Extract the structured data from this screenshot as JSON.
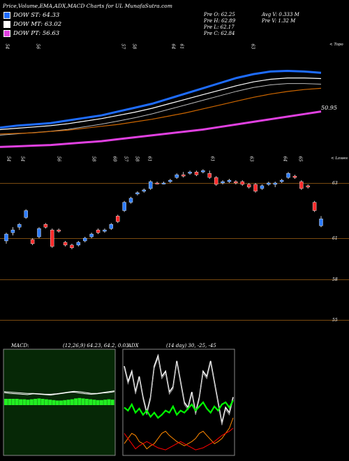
{
  "header": {
    "title": "Price,Volume,EMA,ADX,MACD Charts for UL  MunafaSutra.com",
    "legend": [
      {
        "label": "DOW ST: 64.33",
        "color": "#1e6cff"
      },
      {
        "label": "DOW MT: 63.02",
        "color": "#ffffff"
      },
      {
        "label": "DOW PT: 56.63",
        "color": "#e040e0"
      }
    ],
    "stats": {
      "open": "Pre   O: 62.25",
      "high": "Pre   H: 62.89",
      "low": "Pre   L: 62.17",
      "close": "Pre   C: 62.84",
      "avg_vol": "Avg V: 0.333  M",
      "pre_vol": "Pre   V: 1.32  M"
    }
  },
  "ema_panel": {
    "corner_label": "< Topo",
    "last_value": "50.95",
    "top_labels": [
      "54",
      "56",
      "57",
      "58",
      "64",
      "61",
      "63"
    ],
    "bottom_labels": [
      "54",
      "54",
      "56",
      "58",
      "60",
      "57",
      "58",
      "61",
      "61",
      "63",
      "64",
      "65"
    ]
  },
  "price_panel": {
    "corner_label": "< Lowes",
    "axis_labels": [
      "63",
      "61",
      "58",
      "55"
    ]
  },
  "macd_panel": {
    "label": "MACD:",
    "params": "(12,26,9) 64.23,  64.2,  0.03"
  },
  "adx_panel": {
    "label": "ADX",
    "params": "(14 day) 30,  -25,  -45"
  },
  "chart_data": [
    {
      "type": "line",
      "name": "EMA lines",
      "series": [
        {
          "color": "#1e6cff",
          "values": [
            0.05,
            0.08,
            0.1,
            0.12,
            0.16,
            0.2,
            0.24,
            0.3,
            0.36,
            0.42,
            0.5,
            0.58,
            0.66,
            0.74,
            0.82,
            0.88,
            0.92,
            0.93,
            0.92,
            0.9
          ]
        },
        {
          "color": "#ffffff",
          "values": [
            0.02,
            0.04,
            0.06,
            0.08,
            0.11,
            0.15,
            0.19,
            0.24,
            0.29,
            0.35,
            0.42,
            0.49,
            0.56,
            0.63,
            0.7,
            0.76,
            0.8,
            0.82,
            0.82,
            0.81
          ]
        },
        {
          "color": "#cc6600",
          "values": [
            -0.05,
            -0.04,
            -0.03,
            -0.01,
            0.01,
            0.04,
            0.07,
            0.1,
            0.14,
            0.18,
            0.23,
            0.28,
            0.34,
            0.4,
            0.46,
            0.52,
            0.57,
            0.61,
            0.64,
            0.66
          ]
        },
        {
          "color": "#e040e0",
          "values": [
            -0.25,
            -0.24,
            -0.23,
            -0.22,
            -0.2,
            -0.18,
            -0.16,
            -0.13,
            -0.1,
            -0.07,
            -0.04,
            -0.01,
            0.02,
            0.06,
            0.1,
            0.14,
            0.18,
            0.22,
            0.26,
            0.3
          ]
        }
      ]
    },
    {
      "type": "candlestick",
      "name": "Price",
      "candles": [
        {
          "o": 60.9,
          "c": 61.15,
          "h": 61.2,
          "l": 60.8,
          "up": true
        },
        {
          "o": 61.2,
          "c": 61.3,
          "h": 61.4,
          "l": 61.1,
          "up": true
        },
        {
          "o": 61.4,
          "c": 61.5,
          "h": 61.55,
          "l": 61.3,
          "up": true
        },
        {
          "o": 61.75,
          "c": 62.0,
          "h": 62.05,
          "l": 61.7,
          "up": true
        },
        {
          "o": 60.95,
          "c": 60.8,
          "h": 61.0,
          "l": 60.75,
          "up": false
        },
        {
          "o": 61.05,
          "c": 61.35,
          "h": 61.4,
          "l": 61.0,
          "up": true
        },
        {
          "o": 61.5,
          "c": 61.4,
          "h": 61.55,
          "l": 61.35,
          "up": false
        },
        {
          "o": 61.3,
          "c": 60.7,
          "h": 61.35,
          "l": 60.65,
          "up": false
        },
        {
          "o": 61.3,
          "c": 61.25,
          "h": 61.35,
          "l": 61.2,
          "up": false
        },
        {
          "o": 60.85,
          "c": 60.75,
          "h": 60.9,
          "l": 60.7,
          "up": false
        },
        {
          "o": 60.75,
          "c": 60.65,
          "h": 60.8,
          "l": 60.6,
          "up": false
        },
        {
          "o": 60.75,
          "c": 60.85,
          "h": 60.9,
          "l": 60.7,
          "up": true
        },
        {
          "o": 60.9,
          "c": 61.0,
          "h": 61.05,
          "l": 60.85,
          "up": true
        },
        {
          "o": 61.05,
          "c": 61.15,
          "h": 61.2,
          "l": 61.0,
          "up": true
        },
        {
          "o": 61.3,
          "c": 61.2,
          "h": 61.35,
          "l": 61.15,
          "up": false
        },
        {
          "o": 61.25,
          "c": 61.3,
          "h": 61.35,
          "l": 61.2,
          "up": true
        },
        {
          "o": 61.35,
          "c": 61.5,
          "h": 61.55,
          "l": 61.3,
          "up": true
        },
        {
          "o": 61.8,
          "c": 61.6,
          "h": 61.85,
          "l": 61.55,
          "up": false
        },
        {
          "o": 62.0,
          "c": 62.3,
          "h": 62.35,
          "l": 61.95,
          "up": true
        },
        {
          "o": 62.3,
          "c": 62.45,
          "h": 62.5,
          "l": 62.25,
          "up": true
        },
        {
          "o": 62.6,
          "c": 62.65,
          "h": 62.7,
          "l": 62.55,
          "up": true
        },
        {
          "o": 62.7,
          "c": 62.75,
          "h": 62.8,
          "l": 62.65,
          "up": true
        },
        {
          "o": 62.8,
          "c": 63.05,
          "h": 63.1,
          "l": 62.75,
          "up": true
        },
        {
          "o": 63.0,
          "c": 62.98,
          "h": 63.05,
          "l": 62.95,
          "up": false
        },
        {
          "o": 62.98,
          "c": 63.0,
          "h": 63.05,
          "l": 62.95,
          "up": true
        },
        {
          "o": 63.05,
          "c": 63.1,
          "h": 63.15,
          "l": 63.0,
          "up": true
        },
        {
          "o": 63.2,
          "c": 63.3,
          "h": 63.35,
          "l": 63.15,
          "up": true
        },
        {
          "o": 63.3,
          "c": 63.25,
          "h": 63.4,
          "l": 63.2,
          "up": false
        },
        {
          "o": 63.35,
          "c": 63.4,
          "h": 63.45,
          "l": 63.3,
          "up": true
        },
        {
          "o": 63.4,
          "c": 63.3,
          "h": 63.45,
          "l": 63.25,
          "up": false
        },
        {
          "o": 63.4,
          "c": 63.45,
          "h": 63.5,
          "l": 63.35,
          "up": true
        },
        {
          "o": 63.35,
          "c": 63.2,
          "h": 63.45,
          "l": 63.15,
          "up": false
        },
        {
          "o": 63.2,
          "c": 62.95,
          "h": 63.25,
          "l": 62.9,
          "up": false
        },
        {
          "o": 63.0,
          "c": 63.05,
          "h": 63.1,
          "l": 62.95,
          "up": true
        },
        {
          "o": 63.05,
          "c": 63.1,
          "h": 63.15,
          "l": 63.0,
          "up": true
        },
        {
          "o": 63.05,
          "c": 63.0,
          "h": 63.1,
          "l": 62.95,
          "up": false
        },
        {
          "o": 63.05,
          "c": 62.95,
          "h": 63.1,
          "l": 62.9,
          "up": false
        },
        {
          "o": 62.95,
          "c": 62.85,
          "h": 63.0,
          "l": 62.8,
          "up": false
        },
        {
          "o": 62.95,
          "c": 62.7,
          "h": 63.0,
          "l": 62.65,
          "up": false
        },
        {
          "o": 62.8,
          "c": 62.9,
          "h": 62.95,
          "l": 62.75,
          "up": true
        },
        {
          "o": 62.95,
          "c": 63.0,
          "h": 63.05,
          "l": 62.9,
          "up": true
        },
        {
          "o": 62.95,
          "c": 63.0,
          "h": 63.05,
          "l": 62.85,
          "up": true
        },
        {
          "o": 63.05,
          "c": 63.1,
          "h": 63.15,
          "l": 63.0,
          "up": true
        },
        {
          "o": 63.2,
          "c": 63.35,
          "h": 63.4,
          "l": 63.15,
          "up": true
        },
        {
          "o": 63.25,
          "c": 63.2,
          "h": 63.3,
          "l": 63.15,
          "up": false
        },
        {
          "o": 63.05,
          "c": 62.8,
          "h": 63.1,
          "l": 62.75,
          "up": false
        },
        {
          "o": 62.9,
          "c": 62.85,
          "h": 62.95,
          "l": 62.8,
          "up": false
        },
        {
          "o": 62.3,
          "c": 62.0,
          "h": 62.35,
          "l": 61.95,
          "up": false
        },
        {
          "o": 61.7,
          "c": 61.45,
          "h": 61.8,
          "l": 61.4,
          "up": true
        }
      ]
    },
    {
      "type": "line",
      "name": "MACD",
      "series": [
        {
          "color": "#ffffff",
          "values": [
            0.3,
            0.28,
            0.27,
            0.26,
            0.25,
            0.27,
            0.26,
            0.25,
            0.24,
            0.26,
            0.28,
            0.3,
            0.31,
            0.29,
            0.27,
            0.26,
            0.27,
            0.29,
            0.3,
            0.32
          ]
        },
        {
          "color": "#ffffff",
          "values": [
            0.32,
            0.31,
            0.3,
            0.29,
            0.28,
            0.28,
            0.27,
            0.26,
            0.26,
            0.27,
            0.29,
            0.31,
            0.33,
            0.32,
            0.3,
            0.28,
            0.28,
            0.3,
            0.32,
            0.34
          ]
        }
      ],
      "histogram": [
        0.15,
        0.15,
        0.15,
        0.15,
        0.14,
        0.14,
        0.13,
        0.14,
        0.15,
        0.16,
        0.15,
        0.14,
        0.13,
        0.12,
        0.11,
        0.11,
        0.12,
        0.13,
        0.14,
        0.16,
        0.17,
        0.16,
        0.15,
        0.14,
        0.13,
        0.12,
        0.12,
        0.13,
        0.14,
        0.13
      ]
    },
    {
      "type": "line",
      "name": "ADX",
      "series": [
        {
          "color": "#ffffff",
          "values": [
            0.85,
            0.7,
            0.8,
            0.6,
            0.75,
            0.55,
            0.4,
            0.55,
            0.85,
            0.95,
            0.75,
            0.8,
            0.6,
            0.65,
            0.9,
            0.7,
            0.5,
            0.45,
            0.6,
            0.4,
            0.55,
            0.8,
            0.75,
            0.9,
            0.7,
            0.5,
            0.3,
            0.45,
            0.4,
            0.55
          ]
        },
        {
          "color": "#00ff00",
          "values": [
            0.45,
            0.42,
            0.48,
            0.4,
            0.44,
            0.38,
            0.42,
            0.36,
            0.4,
            0.35,
            0.38,
            0.42,
            0.4,
            0.46,
            0.38,
            0.42,
            0.4,
            0.44,
            0.48,
            0.42,
            0.46,
            0.5,
            0.44,
            0.4,
            0.46,
            0.42,
            0.48,
            0.5,
            0.45,
            0.52
          ]
        },
        {
          "color": "#ff8800",
          "values": [
            0.1,
            0.15,
            0.2,
            0.18,
            0.12,
            0.1,
            0.05,
            0.08,
            0.1,
            0.15,
            0.2,
            0.22,
            0.18,
            0.15,
            0.12,
            0.1,
            0.08,
            0.1,
            0.12,
            0.15,
            0.2,
            0.22,
            0.18,
            0.14,
            0.1,
            0.12,
            0.15,
            0.2,
            0.25,
            0.35
          ]
        },
        {
          "color": "#ff0000",
          "values": [
            0.2,
            0.15,
            0.1,
            0.05,
            0.08,
            0.1,
            0.12,
            0.1,
            0.08,
            0.06,
            0.05,
            0.04,
            0.06,
            0.08,
            0.1,
            0.12,
            0.1,
            0.08,
            0.06,
            0.04,
            0.05,
            0.06,
            0.08,
            0.1,
            0.12,
            0.15,
            0.18,
            0.2,
            0.22,
            0.25
          ]
        }
      ]
    }
  ]
}
